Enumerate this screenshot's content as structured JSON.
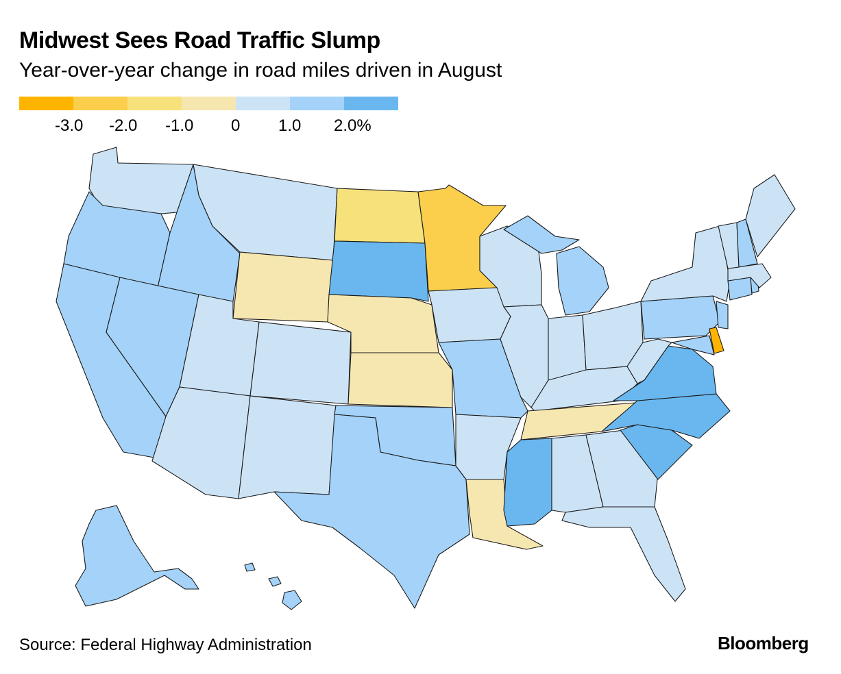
{
  "header": {
    "title": "Midwest Sees Road Traffic Slump",
    "subtitle": "Year-over-year change in road miles driven in August"
  },
  "legend": {
    "colors": [
      "#ffb400",
      "#fbce4b",
      "#f7e17a",
      "#f6e7b0",
      "#cce3f6",
      "#a4d2f8",
      "#6ab7ef"
    ],
    "ticks": [
      "-3.0",
      "-2.0",
      "-1.0",
      "0",
      "1.0",
      "2.0%"
    ]
  },
  "palette": {
    "bin_lt_-3": "#ffb400",
    "bin_-3_-2": "#fbce4b",
    "bin_-2_-1": "#f7e17a",
    "bin_-1_0": "#f6e7b0",
    "bin_0_1": "#cce3f6",
    "bin_1_2": "#a4d2f8",
    "bin_gt_2": "#6ab7ef"
  },
  "footer": {
    "source": "Source: Federal Highway Administration",
    "brand": "Bloomberg"
  }
}
